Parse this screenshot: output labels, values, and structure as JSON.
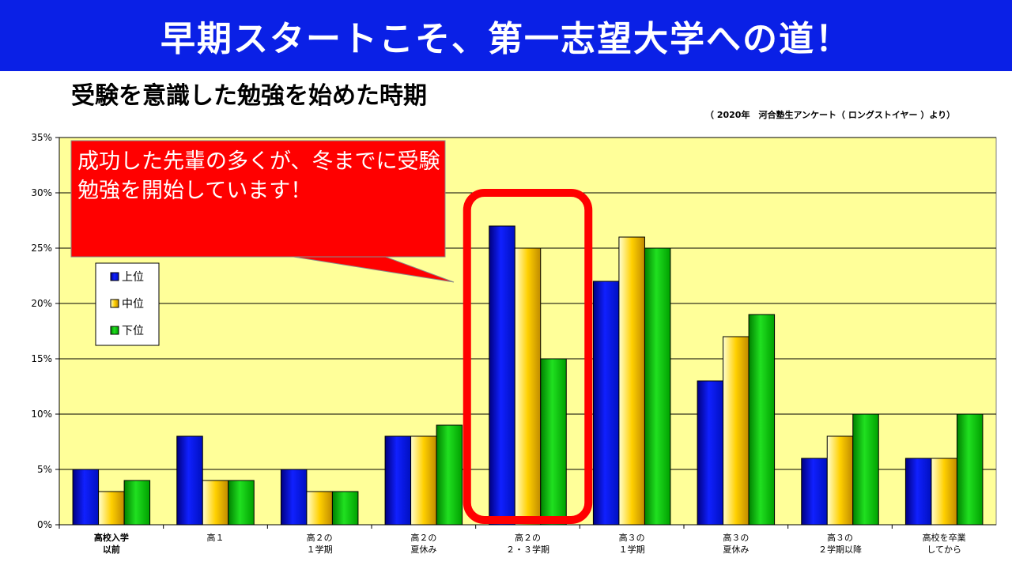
{
  "header": {
    "banner_title": "早期スタートこそ、第一志望大学への道！"
  },
  "subtitle": "受験を意識した勉強を始めた時期",
  "source_note": "（ 2020年　河合塾生アンケート（ ロングストイヤー ）より）",
  "callout": {
    "text": "成功した先輩の多くが、冬までに受験勉強を開始しています！"
  },
  "chart_data": {
    "type": "bar",
    "categories": [
      [
        "高校入学",
        "以前"
      ],
      [
        "高１"
      ],
      [
        "高２の",
        "１学期"
      ],
      [
        "高２の",
        "夏休み"
      ],
      [
        "高２の",
        "２・３学期"
      ],
      [
        "高３の",
        "１学期"
      ],
      [
        "高３の",
        "夏休み"
      ],
      [
        "高３の",
        "２学期以降"
      ],
      [
        "高校を卒業",
        "してから"
      ]
    ],
    "bold_categories": [
      0
    ],
    "series": [
      {
        "name": "上位",
        "color": "#0a14d8",
        "values": [
          5,
          8,
          5,
          8,
          27,
          22,
          13,
          6,
          6
        ]
      },
      {
        "name": "中位",
        "color": "#f2c400",
        "values": [
          3,
          4,
          3,
          8,
          25,
          26,
          17,
          8,
          6
        ]
      },
      {
        "name": "下位",
        "color": "#10c810",
        "values": [
          4,
          4,
          3,
          9,
          15,
          25,
          19,
          10,
          10
        ]
      }
    ],
    "ylim": [
      0,
      35
    ],
    "yticks": [
      "0%",
      "5%",
      "10%",
      "15%",
      "20%",
      "25%",
      "30%",
      "35%"
    ],
    "grid": true,
    "legend_position": "top-left",
    "highlight_category": 4,
    "highlight_color": "#ff0000",
    "plot_background": "#ffff99"
  }
}
